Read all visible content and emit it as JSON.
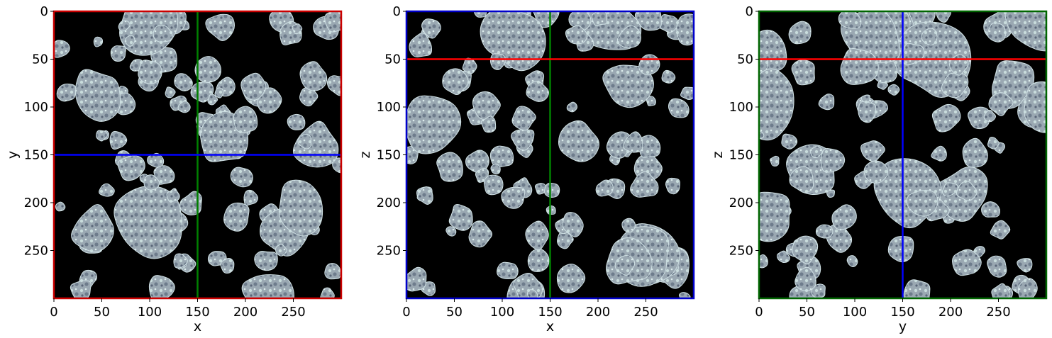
{
  "chart_data": [
    {
      "type": "heatmap",
      "title": "",
      "xlabel": "x",
      "ylabel": "y",
      "xlim": [
        0,
        300
      ],
      "ylim": [
        300,
        0
      ],
      "x_ticks": [
        0,
        50,
        100,
        150,
        200,
        250
      ],
      "y_ticks": [
        0,
        50,
        100,
        150,
        200,
        250
      ],
      "frame_color": "#cc0000",
      "slice_lines": [
        {
          "orientation": "vertical",
          "value": 150,
          "color": "#008000"
        },
        {
          "orientation": "horizontal",
          "value": 150,
          "color": "#0000ff"
        }
      ],
      "colormap": "bone",
      "seed": 11
    },
    {
      "type": "heatmap",
      "title": "",
      "xlabel": "x",
      "ylabel": "z",
      "xlim": [
        0,
        300
      ],
      "ylim": [
        300,
        0
      ],
      "x_ticks": [
        0,
        50,
        100,
        150,
        200,
        250
      ],
      "y_ticks": [
        0,
        50,
        100,
        150,
        200,
        250
      ],
      "frame_color": "#0000cc",
      "slice_lines": [
        {
          "orientation": "vertical",
          "value": 150,
          "color": "#008000"
        },
        {
          "orientation": "horizontal",
          "value": 50,
          "color": "#ff0000"
        }
      ],
      "colormap": "bone",
      "seed": 23
    },
    {
      "type": "heatmap",
      "title": "",
      "xlabel": "y",
      "ylabel": "z",
      "xlim": [
        0,
        300
      ],
      "ylim": [
        300,
        0
      ],
      "x_ticks": [
        0,
        50,
        100,
        150,
        200,
        250
      ],
      "y_ticks": [
        0,
        50,
        100,
        150,
        200,
        250
      ],
      "frame_color": "#006600",
      "slice_lines": [
        {
          "orientation": "vertical",
          "value": 150,
          "color": "#0000ff"
        },
        {
          "orientation": "horizontal",
          "value": 50,
          "color": "#ff0000"
        }
      ],
      "colormap": "bone",
      "seed": 37
    }
  ]
}
